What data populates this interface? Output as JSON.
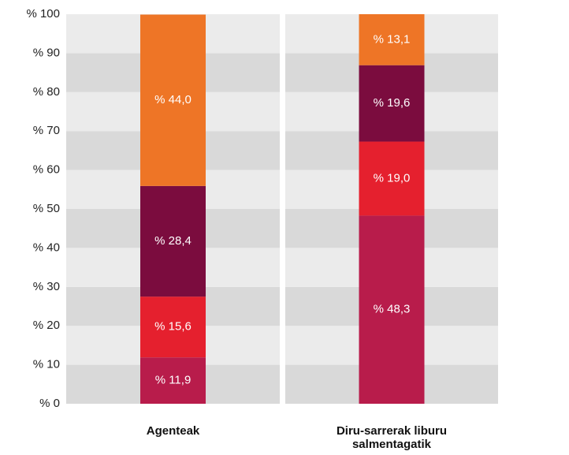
{
  "chart_data": {
    "type": "bar",
    "stacked": true,
    "categories": [
      "Agenteak",
      "Diru-sarrerak liburu salmentagatik"
    ],
    "series": [
      {
        "color": "#b81c4b",
        "values": [
          11.9,
          48.3
        ],
        "value_labels": [
          "% 11,9",
          "% 48,3"
        ]
      },
      {
        "color": "#e5202e",
        "values": [
          15.6,
          19.0
        ],
        "value_labels": [
          "% 15,6",
          "% 19,0"
        ]
      },
      {
        "color": "#7b0c3e",
        "values": [
          28.4,
          19.6
        ],
        "value_labels": [
          "% 28,4",
          "% 19,6"
        ]
      },
      {
        "color": "#ee7526",
        "values": [
          44.0,
          13.1
        ],
        "value_labels": [
          "% 44,0",
          "% 13,1"
        ]
      }
    ],
    "ylim": [
      0,
      100
    ],
    "yticks": [
      {
        "value": 0,
        "label": "% 0"
      },
      {
        "value": 10,
        "label": "% 10"
      },
      {
        "value": 20,
        "label": "% 20"
      },
      {
        "value": 30,
        "label": "% 30"
      },
      {
        "value": 40,
        "label": "% 40"
      },
      {
        "value": 50,
        "label": "% 50"
      },
      {
        "value": 60,
        "label": "% 60"
      },
      {
        "value": 70,
        "label": "% 70"
      },
      {
        "value": 80,
        "label": "% 80"
      },
      {
        "value": 90,
        "label": "% 90"
      },
      {
        "value": 100,
        "label": "% 100"
      }
    ],
    "grid": true
  }
}
